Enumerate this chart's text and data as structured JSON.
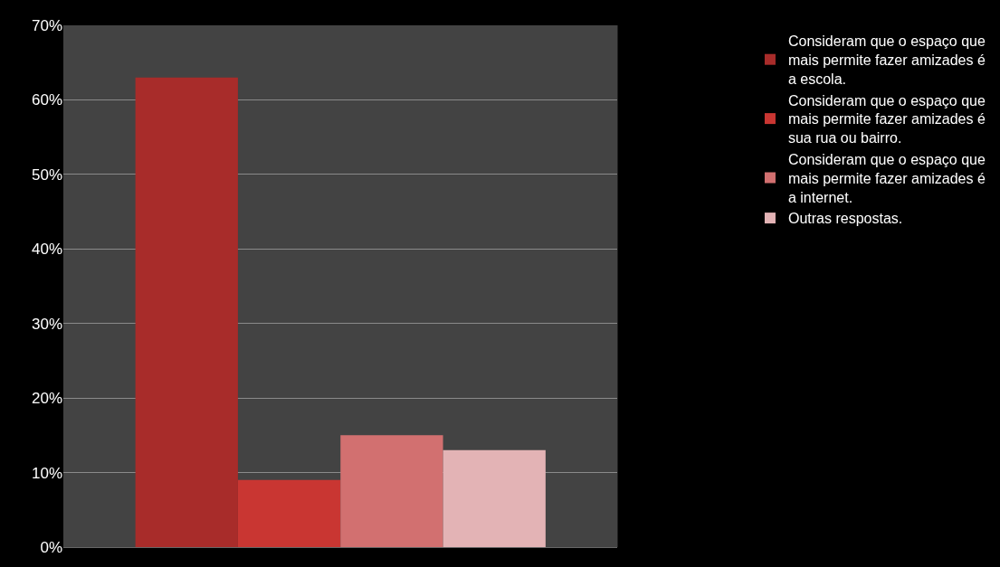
{
  "chart_data": {
    "type": "bar",
    "categories": [
      null
    ],
    "series": [
      {
        "name": "Consideram que o espaço que mais permite fazer amizades é a escola.",
        "color": "#a82c2a",
        "values": [
          63
        ]
      },
      {
        "name": "Consideram que o espaço que mais permite fazer amizades é sua rua ou bairro.",
        "color": "#c93632",
        "values": [
          9
        ]
      },
      {
        "name": "Consideram que o espaço que mais permite fazer amizades é a internet.",
        "color": "#d27070",
        "values": [
          15
        ]
      },
      {
        "name": "Outras respostas.",
        "color": "#e3b3b5",
        "values": [
          13
        ]
      }
    ],
    "ylim": [
      0,
      70
    ],
    "yticks": [
      {
        "value": 0,
        "label": "0%"
      },
      {
        "value": 10,
        "label": "10%"
      },
      {
        "value": 20,
        "label": "20%"
      },
      {
        "value": 30,
        "label": "30%"
      },
      {
        "value": 40,
        "label": "40%"
      },
      {
        "value": 50,
        "label": "50%"
      },
      {
        "value": 60,
        "label": "60%"
      },
      {
        "value": 70,
        "label": "70%"
      }
    ],
    "grid": "y",
    "legend": "right",
    "tick_labels": "y"
  }
}
